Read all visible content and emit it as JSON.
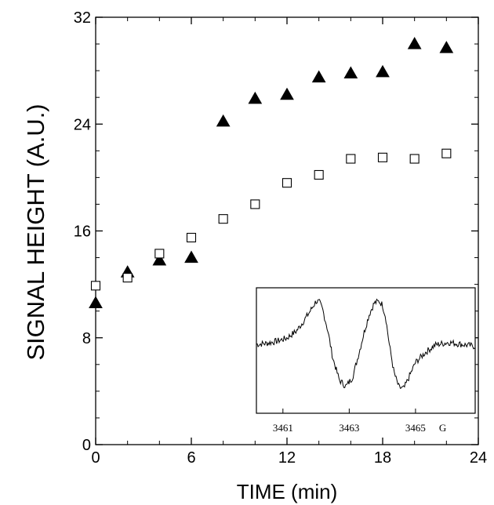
{
  "chart_data": {
    "type": "scatter",
    "xlabel": "TIME (min)",
    "ylabel": "SIGNAL HEIGHT (A.U.)",
    "xlim": [
      0,
      24
    ],
    "ylim": [
      0,
      32
    ],
    "xticks": [
      "0",
      "6",
      "12",
      "18",
      "24"
    ],
    "yticks": [
      "0",
      "8",
      "16",
      "24",
      "32"
    ],
    "grid": false,
    "series": [
      {
        "marker": "filled-triangle",
        "x": [
          0,
          2,
          4,
          6,
          8,
          10,
          12,
          14,
          16,
          18,
          20,
          22
        ],
        "y": [
          10.6,
          12.9,
          13.8,
          14.0,
          24.2,
          25.9,
          26.2,
          27.5,
          27.8,
          27.9,
          30.0,
          29.7
        ]
      },
      {
        "marker": "open-square",
        "x": [
          0,
          2,
          4,
          6,
          8,
          10,
          12,
          14,
          16,
          18,
          20,
          22
        ],
        "y": [
          11.9,
          12.5,
          14.3,
          15.5,
          16.9,
          18.0,
          19.6,
          20.2,
          21.4,
          21.5,
          21.4,
          21.8
        ]
      }
    ],
    "inset": {
      "type": "line",
      "xticks": [
        "3461",
        "3463",
        "3465"
      ],
      "unit": "G",
      "xlim": [
        3460.2,
        3466.8
      ],
      "spectrum_x": [
        3460.2,
        3460.5,
        3460.8,
        3461.1,
        3461.4,
        3461.6,
        3461.8,
        3462.0,
        3462.1,
        3462.2,
        3462.35,
        3462.5,
        3462.7,
        3462.9,
        3463.1,
        3463.3,
        3463.45,
        3463.6,
        3463.75,
        3463.9,
        3464.0,
        3464.1,
        3464.2,
        3464.35,
        3464.5,
        3464.65,
        3464.8,
        3465.0,
        3465.3,
        3465.6,
        3466.0,
        3466.4,
        3466.8
      ],
      "spectrum_y": [
        0.06,
        0.08,
        0.12,
        0.18,
        0.32,
        0.5,
        0.7,
        0.92,
        0.9,
        0.75,
        0.35,
        -0.2,
        -0.65,
        -0.78,
        -0.6,
        -0.1,
        0.3,
        0.65,
        0.88,
        0.92,
        0.85,
        0.6,
        0.1,
        -0.5,
        -0.8,
        -0.82,
        -0.6,
        -0.3,
        -0.1,
        0.05,
        0.1,
        0.06,
        0.02
      ]
    }
  }
}
